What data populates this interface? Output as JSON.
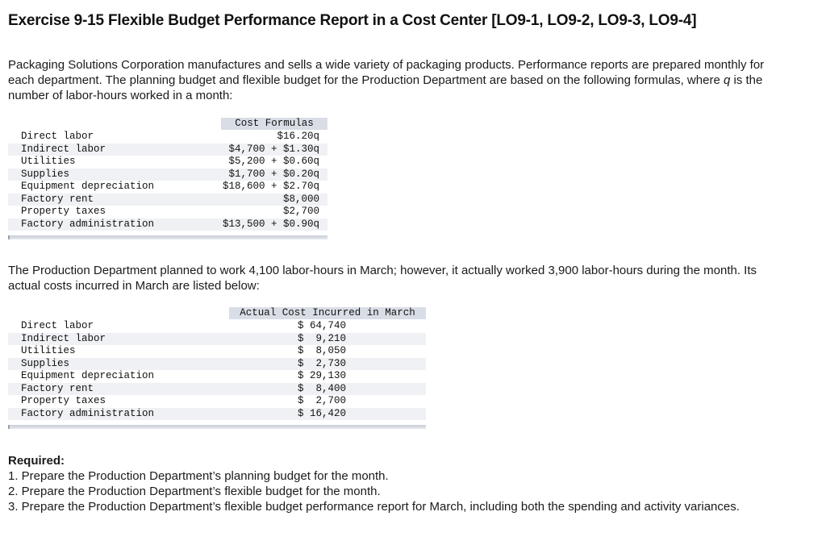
{
  "title": "Exercise 9-15 Flexible Budget Performance Report in a Cost Center [LO9-1, LO9-2, LO9-3, LO9-4]",
  "intro": {
    "before_q": "Packaging Solutions Corporation manufactures and sells a wide variety of packaging products. Performance reports are prepared monthly for each department. The planning budget and flexible budget for the Production Department are based on the following formulas, where ",
    "q": "q",
    "after_q": " is the number of labor-hours worked in a month:"
  },
  "cost_formulas": {
    "header": "Cost Formulas",
    "rows": [
      {
        "label": "Direct labor",
        "value": "$16.20q"
      },
      {
        "label": "Indirect labor",
        "value": "$4,700 + $1.30q"
      },
      {
        "label": "Utilities",
        "value": "$5,200 + $0.60q"
      },
      {
        "label": "Supplies",
        "value": "$1,700 + $0.20q"
      },
      {
        "label": "Equipment depreciation",
        "value": "$18,600 + $2.70q"
      },
      {
        "label": "Factory rent",
        "value": "$8,000"
      },
      {
        "label": "Property taxes",
        "value": "$2,700"
      },
      {
        "label": "Factory administration",
        "value": "$13,500 + $0.90q"
      }
    ]
  },
  "middle_text": "The Production Department planned to work 4,100 labor-hours in March; however, it actually worked 3,900 labor-hours during the month. Its actual costs incurred in March are listed below:",
  "actual_costs": {
    "header": "Actual Cost Incurred in March",
    "rows": [
      {
        "label": "Direct labor",
        "value": "$ 64,740"
      },
      {
        "label": "Indirect labor",
        "value": "$  9,210"
      },
      {
        "label": "Utilities",
        "value": "$  8,050"
      },
      {
        "label": "Supplies",
        "value": "$  2,730"
      },
      {
        "label": "Equipment depreciation",
        "value": "$ 29,130"
      },
      {
        "label": "Factory rent",
        "value": "$  8,400"
      },
      {
        "label": "Property taxes",
        "value": "$  2,700"
      },
      {
        "label": "Factory administration",
        "value": "$ 16,420"
      }
    ]
  },
  "required": {
    "title": "Required:",
    "items": [
      "1. Prepare the Production Department’s planning budget for the month.",
      "2. Prepare the Production Department’s flexible budget for the month.",
      "3. Prepare the Production Department’s flexible budget performance report for March, including both the spending and activity variances."
    ]
  }
}
